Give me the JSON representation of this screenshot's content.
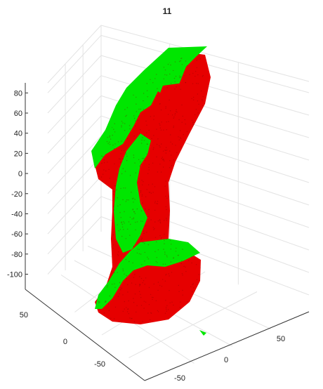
{
  "chart_data": {
    "type": "scatter",
    "projection": "3d",
    "title": "11",
    "xlabel": "",
    "ylabel": "",
    "zlabel": "",
    "grid": true,
    "legend": "none",
    "x_ticks": [
      "-50",
      "0",
      "50"
    ],
    "y_ticks": [
      "-50",
      "0",
      "50"
    ],
    "z_ticks": [
      "80",
      "60",
      "40",
      "20",
      "0",
      "-20",
      "-40",
      "-60",
      "-80",
      "-100"
    ],
    "xlim": [
      -75,
      75
    ],
    "ylim": [
      -75,
      100
    ],
    "zlim": [
      -115,
      90
    ],
    "series": [
      {
        "color": "#e60000",
        "marker": "dot",
        "description_points": "dense red point cloud forming a boot-shaped surface",
        "points": [
          [
            10,
            10,
            80
          ],
          [
            15,
            10,
            65
          ],
          [
            10,
            0,
            45
          ],
          [
            -5,
            -10,
            20
          ],
          [
            0,
            -5,
            5
          ],
          [
            5,
            0,
            -10
          ],
          [
            0,
            5,
            -25
          ],
          [
            5,
            5,
            -40
          ],
          [
            0,
            0,
            -55
          ],
          [
            -5,
            0,
            -70
          ],
          [
            10,
            20,
            -80
          ],
          [
            30,
            10,
            -95
          ],
          [
            -10,
            -25,
            -90
          ],
          [
            -10,
            10,
            -105
          ],
          [
            35,
            -5,
            -85
          ]
        ]
      },
      {
        "color": "#00e600",
        "marker": "dot",
        "description_points": "dense green point cloud covering the upper surface",
        "points": [
          [
            -25,
            10,
            90
          ],
          [
            -10,
            0,
            60
          ],
          [
            -25,
            -25,
            20
          ],
          [
            -20,
            -10,
            0
          ],
          [
            -15,
            -5,
            -20
          ],
          [
            -15,
            0,
            -40
          ],
          [
            0,
            10,
            -62
          ],
          [
            -10,
            -20,
            -75
          ],
          [
            -20,
            -25,
            -100
          ],
          [
            20,
            25,
            -70
          ],
          [
            15,
            15,
            -110
          ]
        ]
      }
    ]
  }
}
